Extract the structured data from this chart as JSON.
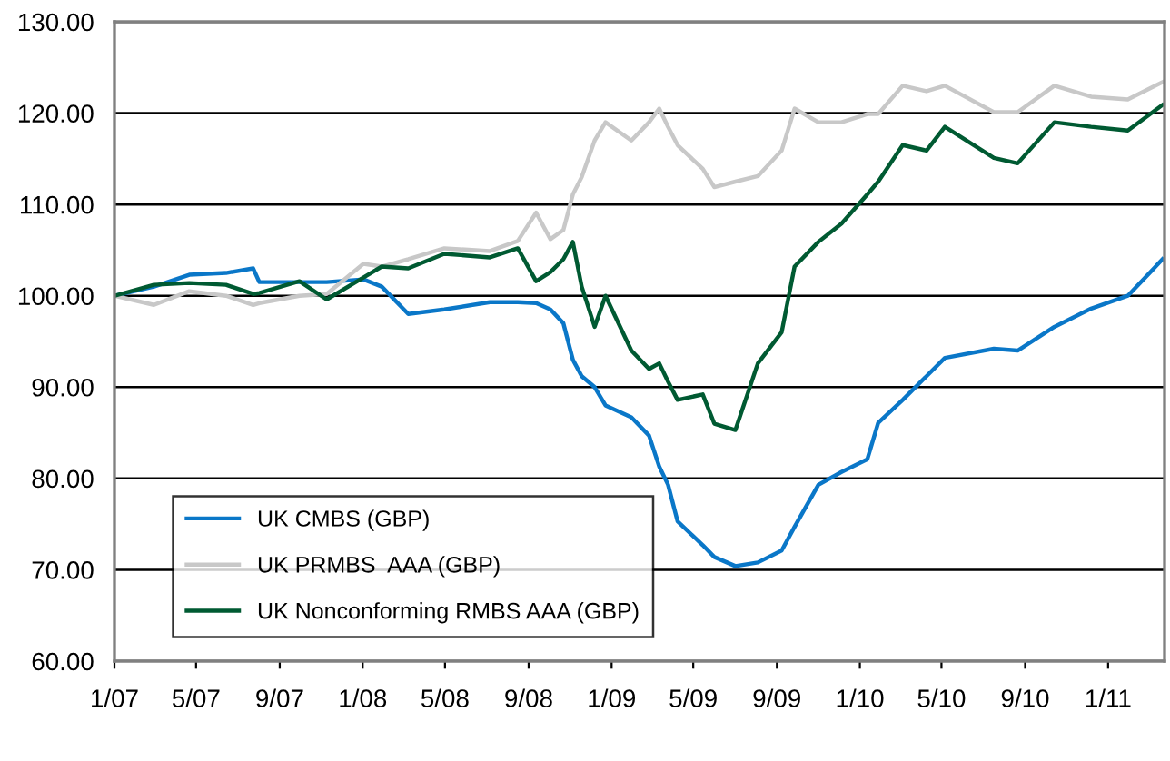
{
  "chart_data": {
    "type": "line",
    "x": [
      "2007-01-01",
      "2007-02-28",
      "2007-04-21",
      "2007-06-14",
      "2007-07-24",
      "2007-08-02",
      "2007-09-30",
      "2007-11-09",
      "2008-01-02",
      "2008-01-29",
      "2008-03-08",
      "2008-04-30",
      "2008-07-06",
      "2008-08-16",
      "2008-09-12",
      "2008-10-03",
      "2008-10-22",
      "2008-11-05",
      "2008-11-18",
      "2008-12-07",
      "2008-12-23",
      "2009-01-30",
      "2009-02-25",
      "2009-03-12",
      "2009-03-25",
      "2009-04-08",
      "2009-05-15",
      "2009-06-01",
      "2009-07-02",
      "2009-08-04",
      "2009-09-08",
      "2009-09-27",
      "2009-11-01",
      "2009-12-05",
      "2010-01-12",
      "2010-01-28",
      "2010-03-05",
      "2010-04-09",
      "2010-05-06",
      "2010-07-17",
      "2010-08-21",
      "2010-10-14",
      "2010-12-07",
      "2011-01-30",
      "2011-03-22"
    ],
    "series": [
      {
        "name": "UK CMBS (GBP)",
        "color": "#0a77c8",
        "values": [
          100,
          101,
          102.3,
          102.5,
          103,
          101.5,
          101.5,
          101.5,
          101.8,
          101,
          98,
          98.5,
          99.3,
          99.3,
          99.2,
          98.5,
          97,
          93,
          91.2,
          90,
          88,
          86.7,
          84.7,
          81.3,
          79.3,
          75.3,
          72.7,
          71.4,
          70.4,
          70.8,
          72.1,
          74.7,
          79.3,
          80.7,
          82.1,
          86.1,
          88.6,
          91.2,
          93.2,
          94.2,
          94,
          96.6,
          98.6,
          100,
          104
        ]
      },
      {
        "name": "UK PRMBS  AAA (GBP)",
        "color": "#c8c8c8",
        "values": [
          100,
          99,
          100.5,
          100,
          99,
          99.2,
          100,
          100.2,
          103.5,
          103.2,
          104,
          105.2,
          104.9,
          106,
          109.1,
          106.2,
          107.2,
          111.1,
          113,
          117,
          119,
          117,
          119,
          120.5,
          118.5,
          116.5,
          113.9,
          111.9,
          112.5,
          113.1,
          115.9,
          120.5,
          119,
          119,
          119.9,
          119.9,
          123,
          122.4,
          123,
          120.1,
          120.1,
          123,
          121.8,
          121.5,
          123.4
        ]
      },
      {
        "name": "UK Nonconforming RMBS AAA (GBP)",
        "color": "#005a32",
        "values": [
          100,
          101.2,
          101.4,
          101.2,
          100.2,
          100.3,
          101.6,
          99.6,
          102,
          103.2,
          103,
          104.6,
          104.2,
          105.2,
          101.6,
          102.6,
          104,
          105.9,
          101,
          96.6,
          100,
          94,
          92,
          92.6,
          90.6,
          88.6,
          89.2,
          86,
          85.3,
          92.6,
          96,
          103.2,
          105.9,
          107.9,
          111.1,
          112.5,
          116.5,
          115.9,
          118.5,
          115.1,
          114.5,
          119,
          118.5,
          118.1,
          120.9
        ]
      }
    ],
    "xlim": [
      "2007-01-01",
      "2011-03-25"
    ],
    "xticks": [
      {
        "value": "2007-01-01",
        "label": "1/07"
      },
      {
        "value": "2007-05-01",
        "label": "5/07"
      },
      {
        "value": "2007-09-01",
        "label": "9/07"
      },
      {
        "value": "2008-01-01",
        "label": "1/08"
      },
      {
        "value": "2008-05-01",
        "label": "5/08"
      },
      {
        "value": "2008-09-01",
        "label": "9/08"
      },
      {
        "value": "2009-01-01",
        "label": "1/09"
      },
      {
        "value": "2009-05-01",
        "label": "5/09"
      },
      {
        "value": "2009-09-01",
        "label": "9/09"
      },
      {
        "value": "2010-01-01",
        "label": "1/10"
      },
      {
        "value": "2010-05-01",
        "label": "5/10"
      },
      {
        "value": "2010-09-01",
        "label": "9/10"
      },
      {
        "value": "2011-01-01",
        "label": "1/11"
      }
    ],
    "ylim": [
      60,
      130
    ],
    "yticks": [
      {
        "value": 60,
        "label": "60.00"
      },
      {
        "value": 70,
        "label": "70.00"
      },
      {
        "value": 80,
        "label": "80.00"
      },
      {
        "value": 90,
        "label": "90.00"
      },
      {
        "value": 100,
        "label": "100.00"
      },
      {
        "value": 110,
        "label": "110.00"
      },
      {
        "value": 120,
        "label": "120.00"
      },
      {
        "value": 130,
        "label": "130.00"
      }
    ],
    "grid": "y",
    "legend": "lower left",
    "marker": "none",
    "line_style": "solid"
  }
}
